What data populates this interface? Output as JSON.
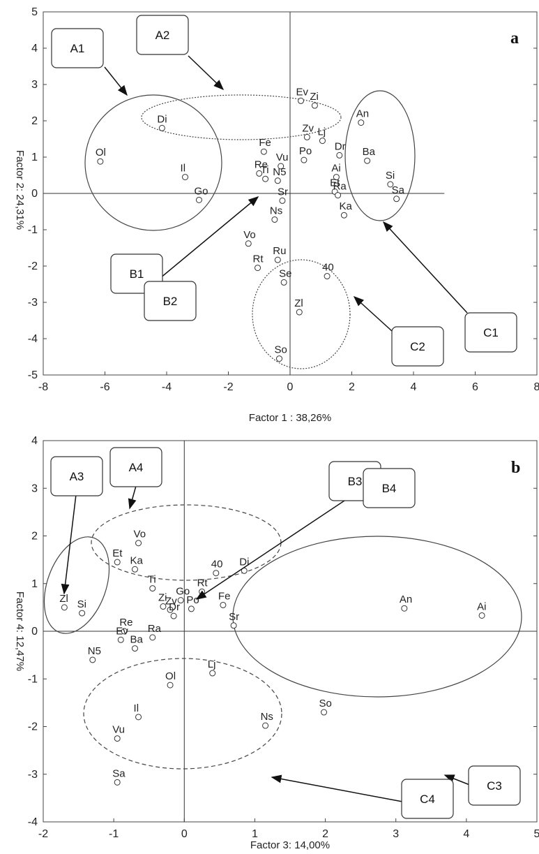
{
  "chart_data": [
    {
      "type": "scatter",
      "panel_label": "a",
      "xlabel": "Factor 1 : 38,26%",
      "ylabel": "Factor 2: 24,31%",
      "xlim": [
        -8,
        8
      ],
      "ylim": [
        -5,
        5
      ],
      "xticks": [
        "-8",
        "-6",
        "-4",
        "-2",
        "0",
        "2",
        "4",
        "6",
        "8"
      ],
      "yticks": [
        "5",
        "4",
        "3",
        "2",
        "1",
        "0",
        "-1",
        "-2",
        "-3",
        "-4",
        "-5"
      ],
      "points": [
        {
          "label": "Ol",
          "x": -6.15,
          "y": 0.88
        },
        {
          "label": "Di",
          "x": -4.15,
          "y": 1.8
        },
        {
          "label": "Il",
          "x": -3.4,
          "y": 0.45
        },
        {
          "label": "Go",
          "x": -2.95,
          "y": -0.18
        },
        {
          "label": "Ev",
          "x": 0.35,
          "y": 2.55
        },
        {
          "label": "Zi",
          "x": 0.8,
          "y": 2.42
        },
        {
          "label": "An",
          "x": 2.3,
          "y": 1.95
        },
        {
          "label": "Zv",
          "x": 0.55,
          "y": 1.55
        },
        {
          "label": "Lj",
          "x": 1.05,
          "y": 1.45
        },
        {
          "label": "Fe",
          "x": -0.85,
          "y": 1.15
        },
        {
          "label": "Po",
          "x": 0.45,
          "y": 0.92
        },
        {
          "label": "Dr",
          "x": 1.6,
          "y": 1.05
        },
        {
          "label": "Ba",
          "x": 2.5,
          "y": 0.9
        },
        {
          "label": "Re",
          "x": -1.0,
          "y": 0.55
        },
        {
          "label": "Vu",
          "x": -0.3,
          "y": 0.75
        },
        {
          "label": "Ti",
          "x": -0.8,
          "y": 0.4
        },
        {
          "label": "N5",
          "x": -0.4,
          "y": 0.35
        },
        {
          "label": "Ai",
          "x": 1.5,
          "y": 0.45
        },
        {
          "label": "Si",
          "x": 3.25,
          "y": 0.25
        },
        {
          "label": "Sa",
          "x": 3.45,
          "y": -0.15
        },
        {
          "label": "Sr",
          "x": -0.25,
          "y": -0.2
        },
        {
          "label": "Et",
          "x": 1.45,
          "y": 0.05
        },
        {
          "label": "Ra",
          "x": 1.55,
          "y": -0.05
        },
        {
          "label": "Ns",
          "x": -0.5,
          "y": -0.72
        },
        {
          "label": "Ka",
          "x": 1.75,
          "y": -0.6
        },
        {
          "label": "Vo",
          "x": -1.35,
          "y": -1.38
        },
        {
          "label": "Ru",
          "x": -0.4,
          "y": -1.83
        },
        {
          "label": "Rt",
          "x": -1.05,
          "y": -2.05
        },
        {
          "label": "Se",
          "x": -0.2,
          "y": -2.45
        },
        {
          "label": "40",
          "x": 1.2,
          "y": -2.28
        },
        {
          "label": "Zl",
          "x": 0.3,
          "y": -3.27
        },
        {
          "label": "So",
          "x": -0.35,
          "y": -4.55
        }
      ],
      "groups": [
        {
          "label": "A1",
          "line": "solid"
        },
        {
          "label": "A2",
          "line": "dotted"
        },
        {
          "label": "B1",
          "line": "arrow"
        },
        {
          "label": "B2",
          "line": "arrow"
        },
        {
          "label": "C1",
          "line": "solid"
        },
        {
          "label": "C2",
          "line": "dotted"
        }
      ]
    },
    {
      "type": "scatter",
      "panel_label": "b",
      "xlabel": "Factor 3: 14,00%",
      "ylabel": "Factor 4:  12,47%",
      "xlim": [
        -2,
        5
      ],
      "ylim": [
        -4,
        4
      ],
      "xticks": [
        "-2",
        "-1",
        "0",
        "1",
        "2",
        "3",
        "4",
        "5"
      ],
      "yticks": [
        "4",
        "3",
        "2",
        "1",
        "0",
        "-1",
        "-2",
        "-3",
        "-4"
      ],
      "points": [
        {
          "label": "Vo",
          "x": -0.65,
          "y": 1.85
        },
        {
          "label": "Et",
          "x": -0.95,
          "y": 1.45
        },
        {
          "label": "Ka",
          "x": -0.7,
          "y": 1.3
        },
        {
          "label": "40",
          "x": 0.45,
          "y": 1.22
        },
        {
          "label": "Di",
          "x": 0.85,
          "y": 1.27
        },
        {
          "label": "Ti",
          "x": -0.45,
          "y": 0.9
        },
        {
          "label": "Rt",
          "x": 0.25,
          "y": 0.83
        },
        {
          "label": "Go",
          "x": -0.05,
          "y": 0.65
        },
        {
          "label": "Zl",
          "x": -1.7,
          "y": 0.5
        },
        {
          "label": "Si",
          "x": -1.45,
          "y": 0.38
        },
        {
          "label": "Zi",
          "x": -0.3,
          "y": 0.52
        },
        {
          "label": "Zv",
          "x": -0.2,
          "y": 0.45
        },
        {
          "label": "Po",
          "x": 0.1,
          "y": 0.47
        },
        {
          "label": "Fe",
          "x": 0.55,
          "y": 0.55
        },
        {
          "label": "Dr",
          "x": -0.15,
          "y": 0.32
        },
        {
          "label": "Sr",
          "x": 0.7,
          "y": 0.12
        },
        {
          "label": "Re",
          "x": -0.85,
          "y": 0.0
        },
        {
          "label": "Ev",
          "x": -0.9,
          "y": -0.18
        },
        {
          "label": "Ba",
          "x": -0.7,
          "y": -0.36
        },
        {
          "label": "Ra",
          "x": -0.45,
          "y": -0.13
        },
        {
          "label": "N5",
          "x": -1.3,
          "y": -0.6
        },
        {
          "label": "An",
          "x": 3.12,
          "y": 0.48
        },
        {
          "label": "Ai",
          "x": 4.22,
          "y": 0.33
        },
        {
          "label": "Lj",
          "x": 0.4,
          "y": -0.88
        },
        {
          "label": "Ol",
          "x": -0.2,
          "y": -1.13
        },
        {
          "label": "Il",
          "x": -0.65,
          "y": -1.8
        },
        {
          "label": "Vu",
          "x": -0.95,
          "y": -2.25
        },
        {
          "label": "Ns",
          "x": 1.15,
          "y": -1.98
        },
        {
          "label": "So",
          "x": 1.98,
          "y": -1.7
        },
        {
          "label": "Sa",
          "x": -0.95,
          "y": -3.17
        }
      ],
      "groups": [
        {
          "label": "A3",
          "line": "solid"
        },
        {
          "label": "A4",
          "line": "dashed"
        },
        {
          "label": "B3",
          "line": "arrow"
        },
        {
          "label": "B4",
          "line": "arrow"
        },
        {
          "label": "C3",
          "line": "solid"
        },
        {
          "label": "C4",
          "line": "dashed"
        }
      ]
    }
  ]
}
